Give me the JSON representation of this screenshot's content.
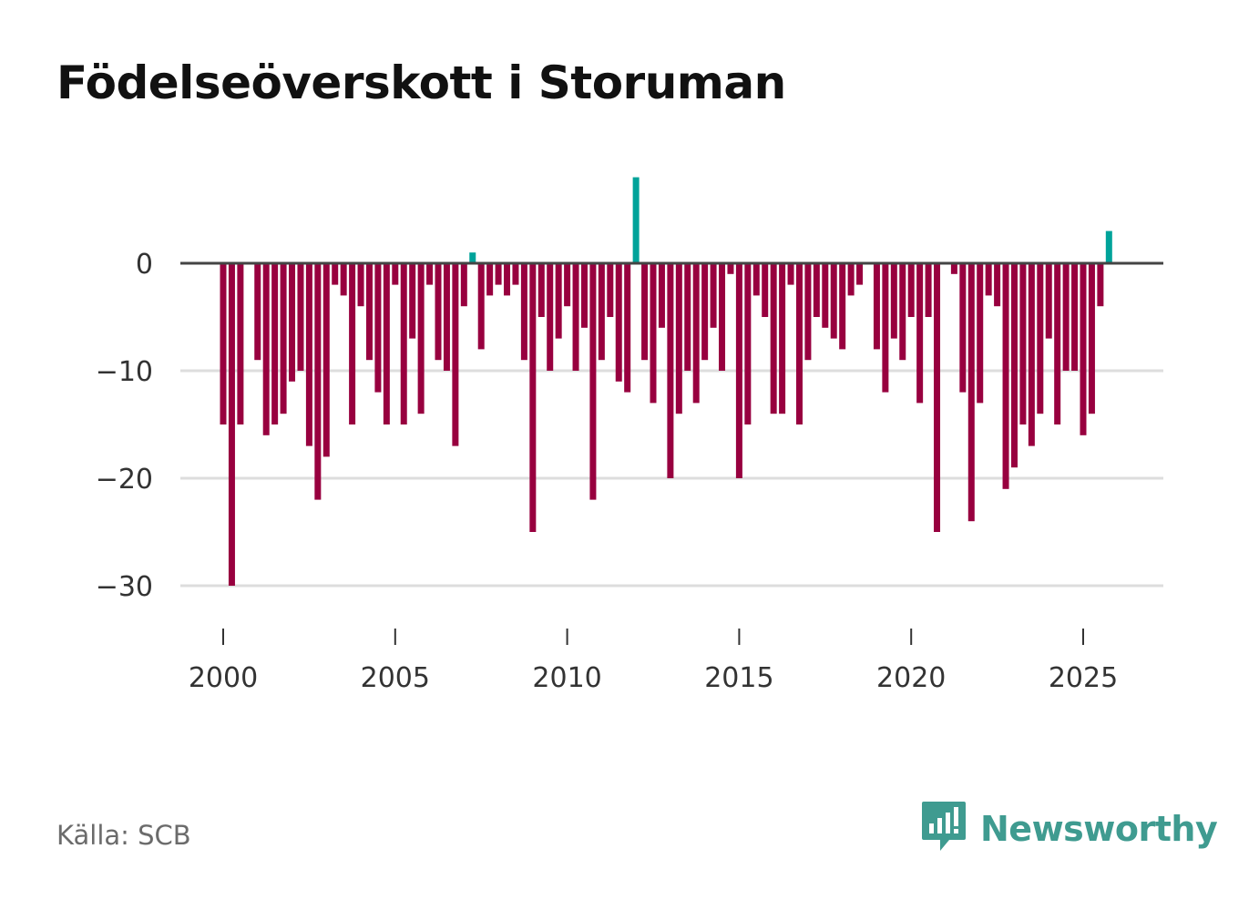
{
  "chart_data": {
    "type": "bar",
    "title": "Födelseöverskott i Storuman",
    "xlabel": "",
    "ylabel": "",
    "ylim": [
      -35,
      8
    ],
    "xlim": [
      1999.5,
      2027.3
    ],
    "y_ticks": [
      0,
      -10,
      -20,
      -30
    ],
    "y_tick_labels": [
      "0",
      "−10",
      "−20",
      "−30"
    ],
    "x_ticks": [
      2000,
      2005,
      2010,
      2015,
      2020,
      2025
    ],
    "x_tick_labels": [
      "2000",
      "2005",
      "2010",
      "2015",
      "2020",
      "2025"
    ],
    "start": 2000,
    "step": 0.25,
    "colors": {
      "negative": "#98003f",
      "positive": "#00a39a",
      "zero_line": "#444444",
      "grid": "#dddddd"
    },
    "values": [
      -15,
      -30,
      -15,
      0,
      -9,
      -16,
      -15,
      -14,
      -11,
      -10,
      -17,
      -22,
      -18,
      -2,
      -3,
      -15,
      -4,
      -9,
      -12,
      -15,
      -2,
      -15,
      -7,
      -14,
      -2,
      -9,
      -10,
      -17,
      -4,
      1,
      -8,
      -3,
      -2,
      -3,
      -2,
      -9,
      -25,
      -5,
      -10,
      -7,
      -4,
      -10,
      -6,
      -22,
      -9,
      -5,
      -11,
      -12,
      8,
      -9,
      -13,
      -6,
      -20,
      -14,
      -10,
      -13,
      -9,
      -6,
      -10,
      -1,
      -20,
      -15,
      -3,
      -5,
      -14,
      -14,
      -2,
      -15,
      -9,
      -5,
      -6,
      -7,
      -8,
      -3,
      -2,
      0,
      -8,
      -12,
      -7,
      -9,
      -5,
      -13,
      -5,
      -25,
      0,
      -1,
      -12,
      -24,
      -13,
      -3,
      -4,
      -21,
      -19,
      -15,
      -17,
      -14,
      -7,
      -15,
      -10,
      -10,
      -16,
      -14,
      -4,
      3
    ]
  },
  "footer": {
    "source": "Källa: SCB",
    "brand": "Newsworthy",
    "brand_icon": "newsworthy-logo-icon"
  }
}
